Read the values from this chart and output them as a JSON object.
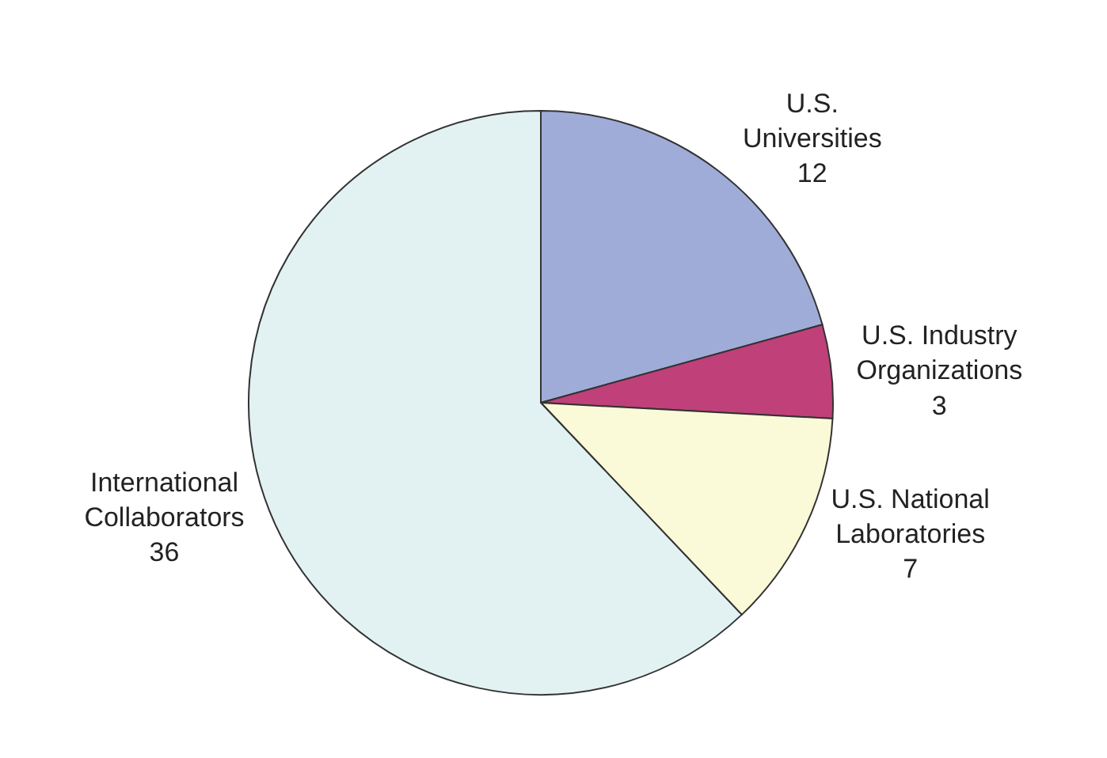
{
  "chart_data": {
    "type": "pie",
    "categories": [
      "U.S. Universities",
      "U.S. Industry Organizations",
      "U.S. National Laboratories",
      "International Collaborators"
    ],
    "values": [
      12,
      3,
      7,
      36
    ],
    "colors": [
      "#a0acd8",
      "#c0407a",
      "#fafad8",
      "#e2f2f2"
    ],
    "data_labels": true,
    "legend": false
  }
}
